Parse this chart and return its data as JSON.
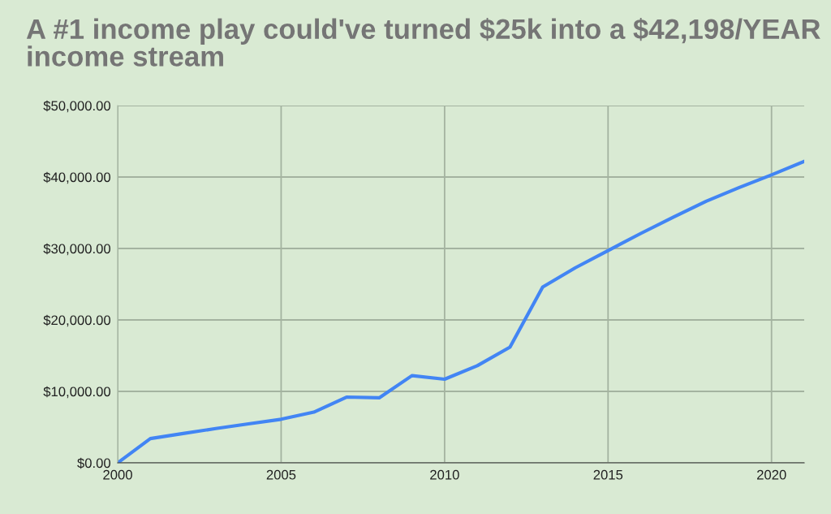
{
  "chart_data": {
    "type": "line",
    "title": "A #1 income play could've turned $25k into a $42,198/YEAR income stream",
    "x": [
      2000,
      2001,
      2002,
      2003,
      2004,
      2005,
      2006,
      2007,
      2008,
      2009,
      2010,
      2011,
      2012,
      2013,
      2014,
      2015,
      2016,
      2017,
      2018,
      2019,
      2020,
      2021
    ],
    "series": [
      {
        "color": "#4285f4",
        "values": [
          0,
          3400,
          4100,
          4800,
          5450,
          6100,
          7100,
          9200,
          9100,
          12200,
          11700,
          13600,
          16200,
          24600,
          27300,
          29700,
          32100,
          34400,
          36600,
          38500,
          40300,
          42198
        ]
      }
    ],
    "xlim": [
      2000,
      2021
    ],
    "xticks": [
      2000,
      2005,
      2010,
      2015,
      2020
    ],
    "ylim": [
      0,
      50000
    ],
    "yticks": [
      {
        "value": 0,
        "label": "$0.00"
      },
      {
        "value": 10000,
        "label": "$10,000.00"
      },
      {
        "value": 20000,
        "label": "$20,000.00"
      },
      {
        "value": 30000,
        "label": "$30,000.00"
      },
      {
        "value": 40000,
        "label": "$40,000.00"
      },
      {
        "value": 50000,
        "label": "$50,000.00"
      }
    ],
    "grid": true,
    "marker": "none",
    "line_style": "solid"
  }
}
